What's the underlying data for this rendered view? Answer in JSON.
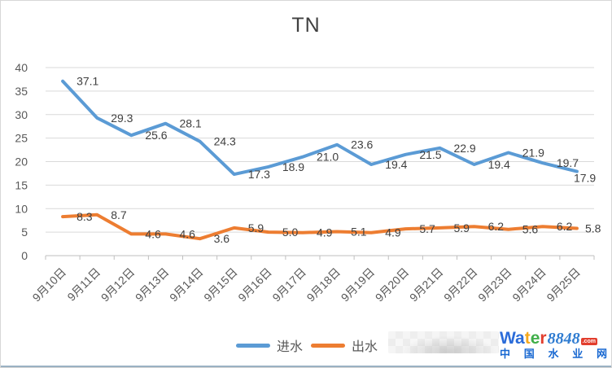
{
  "title": "TN",
  "chart_data": {
    "type": "line",
    "title": "TN",
    "categories": [
      "9月10日",
      "9月11日",
      "9月12日",
      "9月13日",
      "9月14日",
      "9月15日",
      "9月16日",
      "9月17日",
      "9月18日",
      "9月19日",
      "9月20日",
      "9月21日",
      "9月22日",
      "9月23日",
      "9月24日",
      "9月25日"
    ],
    "series": [
      {
        "name": "进水",
        "color": "#5B9BD5",
        "values": [
          37.1,
          29.3,
          25.6,
          28.1,
          24.3,
          17.3,
          18.9,
          21.0,
          23.6,
          19.4,
          21.5,
          22.9,
          19.4,
          21.9,
          19.7,
          17.9
        ]
      },
      {
        "name": "出水",
        "color": "#ED7D31",
        "values": [
          8.3,
          8.7,
          4.6,
          4.6,
          3.6,
          5.9,
          5.0,
          4.9,
          5.1,
          4.9,
          5.7,
          5.9,
          6.2,
          5.6,
          6.2,
          5.8
        ]
      }
    ],
    "ylim": [
      0,
      40
    ],
    "ytick_step": 5,
    "grid": true,
    "data_labels": true,
    "data_label_decimals": 1,
    "legend_position": "bottom",
    "grid_color": "#d9d9d9",
    "axis_color": "#bfbfbf",
    "tick_label_color": "#595959",
    "data_label_color": "#404040"
  },
  "watermark": {
    "brand_letters": [
      {
        "ch": "W",
        "color": "#2b6cd9"
      },
      {
        "ch": "a",
        "color": "#2b6cd9"
      },
      {
        "ch": "t",
        "color": "#f4a81d"
      },
      {
        "ch": "e",
        "color": "#3fae49"
      },
      {
        "ch": "r",
        "color": "#e23e2e"
      }
    ],
    "brand_number": "8848",
    "brand_number_color": "#2f7cd1",
    "brand_tld": ".com",
    "brand_tld_bg": "#e23e2e",
    "subtitle": "中国水业网",
    "subtitle_color": "#1767d1"
  }
}
